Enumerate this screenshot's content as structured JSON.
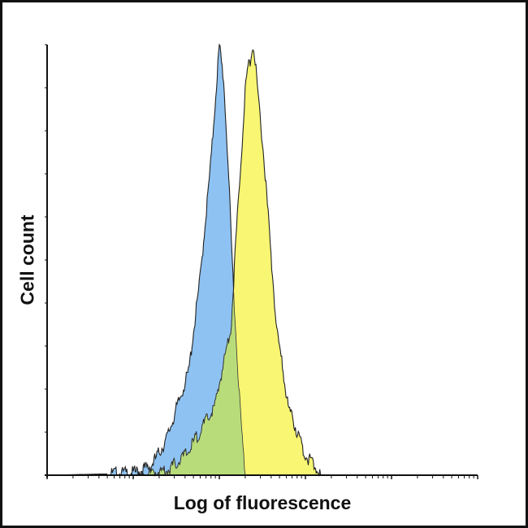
{
  "chart_data": {
    "type": "area",
    "title": "",
    "xlabel": "Log of fluorescence",
    "ylabel": "Cell count",
    "x_scale": "log",
    "xlim": [
      1,
      100000
    ],
    "ylim": [
      0,
      100
    ],
    "y_units": "percent of max",
    "grid": false,
    "legend": "none",
    "overlap_color": "#b9dc7a",
    "series": [
      {
        "color": "#8ec2f2",
        "points": [
          [
            1,
            0
          ],
          [
            5,
            0.3
          ],
          [
            10,
            0.5
          ],
          [
            16,
            2
          ],
          [
            24,
            8
          ],
          [
            44,
            24
          ],
          [
            60,
            46
          ],
          [
            80,
            73
          ],
          [
            100,
            100
          ],
          [
            112,
            92
          ],
          [
            126,
            73
          ],
          [
            138,
            54
          ],
          [
            158,
            30
          ],
          [
            182,
            10
          ],
          [
            200,
            0
          ],
          [
            100000,
            0
          ]
        ]
      },
      {
        "color": "#f8f672",
        "points": [
          [
            1,
            0
          ],
          [
            10,
            0
          ],
          [
            25,
            1
          ],
          [
            42,
            5
          ],
          [
            89,
            16
          ],
          [
            138,
            35
          ],
          [
            155,
            54
          ],
          [
            178,
            73
          ],
          [
            204,
            92
          ],
          [
            250,
            100
          ],
          [
            331,
            73
          ],
          [
            389,
            54
          ],
          [
            457,
            35
          ],
          [
            631,
            16
          ],
          [
            977,
            5
          ],
          [
            1514,
            0
          ],
          [
            100000,
            0
          ]
        ]
      }
    ]
  }
}
